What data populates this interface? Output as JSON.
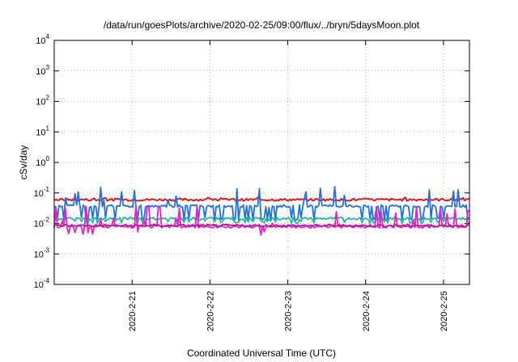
{
  "chart_data": {
    "type": "line",
    "title": "/data/run/goesPlots/archive/2020-02-25/09:00/flux/../bryn/5daysMoon.plot",
    "xlabel": "Coordinated Universal Time (UTC)",
    "ylabel": "cSv/day",
    "y_scale": "log",
    "ylim": [
      0.0001,
      10000
    ],
    "y_ticks": [
      {
        "base": "10",
        "exp": "-4",
        "value": 0.0001
      },
      {
        "base": "10",
        "exp": "-3",
        "value": 0.001
      },
      {
        "base": "10",
        "exp": "-2",
        "value": 0.01
      },
      {
        "base": "10",
        "exp": "-1",
        "value": 0.1
      },
      {
        "base": "10",
        "exp": "0",
        "value": 1
      },
      {
        "base": "10",
        "exp": "1",
        "value": 10
      },
      {
        "base": "10",
        "exp": "2",
        "value": 100
      },
      {
        "base": "10",
        "exp": "3",
        "value": 1000
      },
      {
        "base": "10",
        "exp": "4",
        "value": 10000
      }
    ],
    "xlim": [
      "2020-02-20 01:00",
      "2020-02-25 09:00"
    ],
    "x_ticks": [
      "2020-2-21",
      "2020-2-22",
      "2020-2-23",
      "2020-2-24",
      "2020-2-25"
    ],
    "x_tick_values": [
      1.0,
      2.0,
      3.0,
      4.0,
      5.0
    ],
    "x_range_days": [
      0.0,
      5.3333
    ],
    "grid": true,
    "legend": "none",
    "series": [
      {
        "color": "#e8141c",
        "base": 0.06,
        "spike": 0.075
      },
      {
        "color": "#1f6fe8",
        "base": 0.037,
        "dip": 0.014,
        "spike": 0.16
      },
      {
        "color": "#1fb89a",
        "base": 0.0145,
        "dip": 0.011
      },
      {
        "color": "#f01ad6",
        "base": 0.0078,
        "spike": 0.04,
        "low": 0.0045
      },
      {
        "color": "#b01a8a",
        "base": 0.0085
      }
    ]
  }
}
